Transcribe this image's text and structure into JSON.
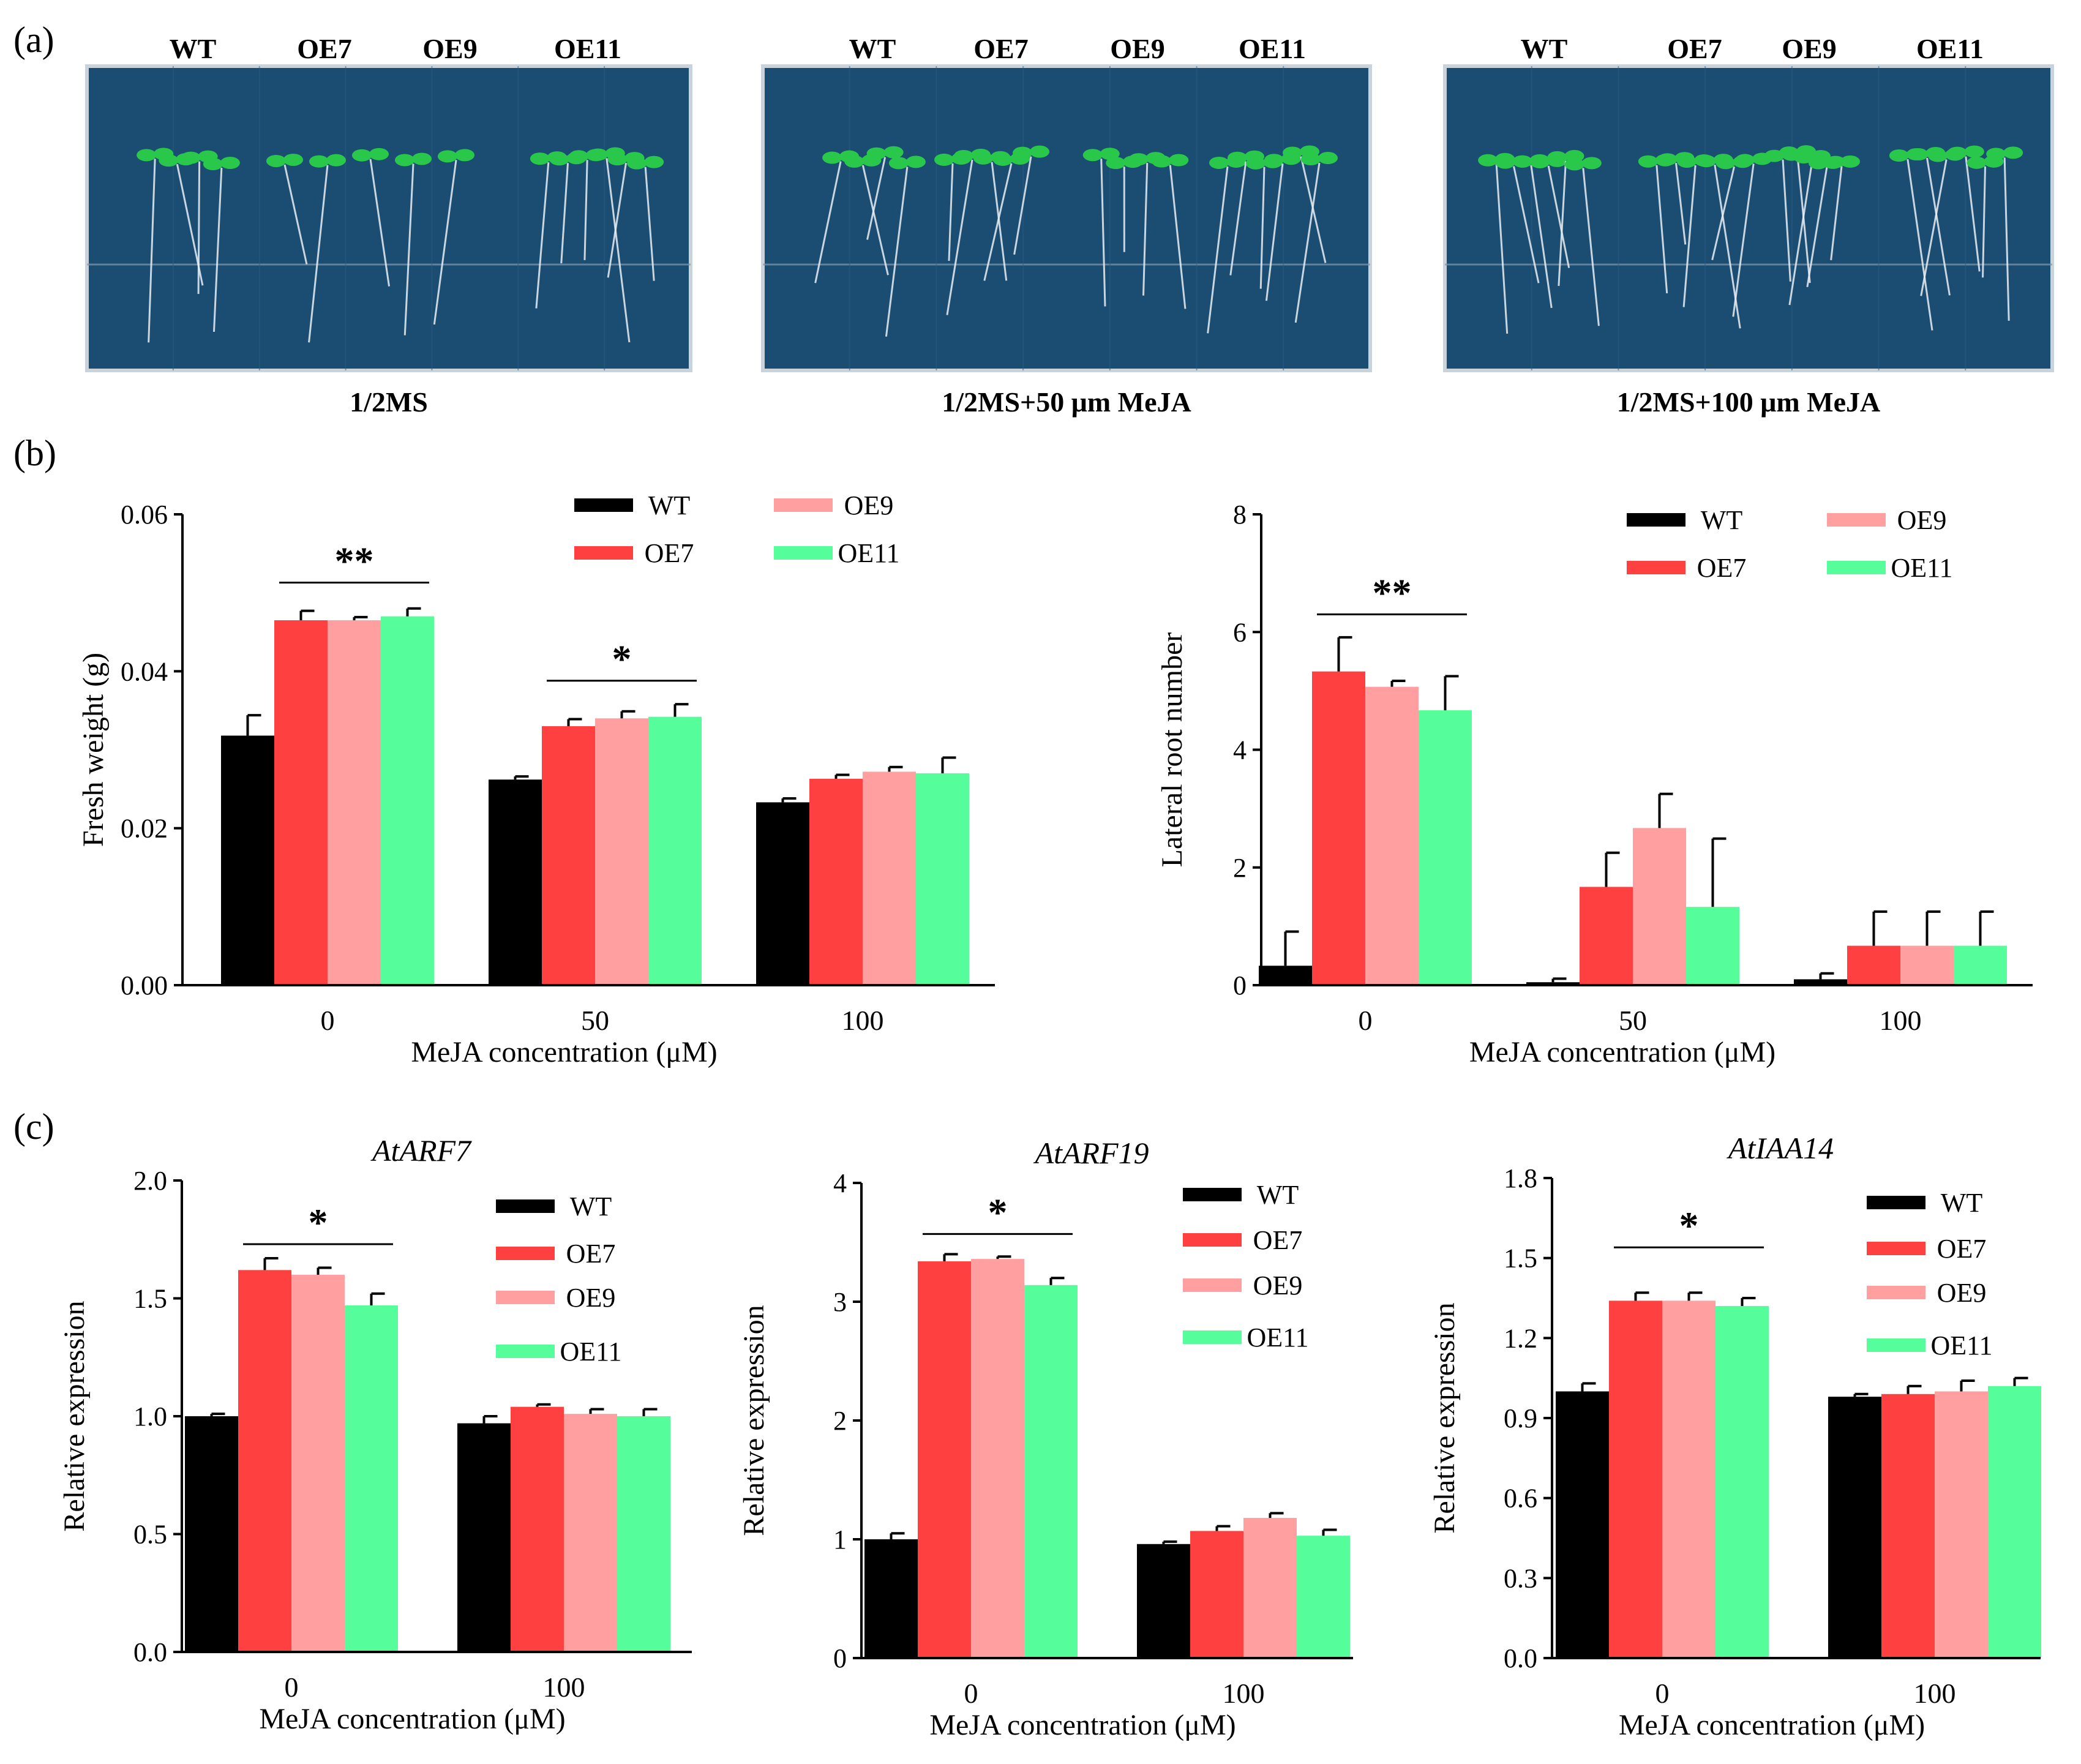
{
  "figure": {
    "panel_labels": [
      "(a)",
      "(b)",
      "(c)"
    ],
    "colors": {
      "WT": "#000000",
      "OE7": "#ff4040",
      "OE9": "#ff9f9f",
      "OE11": "#55fe9a",
      "plate_bg": "#1b4c72",
      "plate_border": "#c8d3dc",
      "seedling": "#29c84a",
      "root": "#e8eef3"
    }
  },
  "photos": [
    {
      "caption": "1/2MS",
      "genotypes": [
        "WT",
        "OE7",
        "OE9",
        "OE11"
      ]
    },
    {
      "caption": "1/2MS+50 μm MeJA",
      "genotypes": [
        "WT",
        "OE7",
        "OE9",
        "OE11"
      ]
    },
    {
      "caption": "1/2MS+100 μm MeJA",
      "genotypes": [
        "WT",
        "OE7",
        "OE9",
        "OE11"
      ]
    }
  ],
  "chart_data": [
    {
      "type": "bar",
      "panel": "b",
      "title": "",
      "categories": [
        "0",
        "50",
        "100"
      ],
      "xlabel": "MeJA concentration (μM)",
      "ylabel": "Fresh weight (g)",
      "ylim": [
        0,
        0.06
      ],
      "yticks": [
        "0.00",
        "0.02",
        "0.04",
        "0.06"
      ],
      "series": [
        {
          "name": "WT",
          "values": [
            0.0318,
            0.0262,
            0.0233
          ],
          "errors": [
            0.0026,
            0.0004,
            0.0005
          ]
        },
        {
          "name": "OE7",
          "values": [
            0.0465,
            0.033,
            0.0263
          ],
          "errors": [
            0.0012,
            0.0009,
            0.0005
          ]
        },
        {
          "name": "OE9",
          "values": [
            0.0465,
            0.034,
            0.0272
          ],
          "errors": [
            0.0004,
            0.0009,
            0.0006
          ]
        },
        {
          "name": "OE11",
          "values": [
            0.047,
            0.0342,
            0.027
          ],
          "errors": [
            0.001,
            0.0016,
            0.002
          ]
        }
      ],
      "legend": {
        "position": "top-right",
        "entries": [
          "WT",
          "OE9",
          "OE7",
          "OE11"
        ]
      },
      "annotations": [
        {
          "text": "**",
          "category": 0,
          "from_series": 1,
          "to_series": 3,
          "level": 0.0513
        },
        {
          "text": "*",
          "category": 1,
          "from_series": 1,
          "to_series": 3,
          "level": 0.0388
        }
      ]
    },
    {
      "type": "bar",
      "panel": "b",
      "title": "",
      "categories": [
        "0",
        "50",
        "100"
      ],
      "xlabel": "MeJA concentration (μM)",
      "ylabel": "Lateral root number",
      "ylim": [
        0,
        8
      ],
      "yticks": [
        "0",
        "2",
        "4",
        "6",
        "8"
      ],
      "series": [
        {
          "name": "WT",
          "values": [
            0.33,
            0.05,
            0.1
          ],
          "errors": [
            0.58,
            0.06,
            0.1
          ]
        },
        {
          "name": "OE7",
          "values": [
            5.33,
            1.67,
            0.67
          ],
          "errors": [
            0.58,
            0.58,
            0.58
          ]
        },
        {
          "name": "OE9",
          "values": [
            5.07,
            2.67,
            0.67
          ],
          "errors": [
            0.1,
            0.58,
            0.58
          ]
        },
        {
          "name": "OE11",
          "values": [
            4.67,
            1.33,
            0.67
          ],
          "errors": [
            0.58,
            1.16,
            0.58
          ]
        }
      ],
      "legend": {
        "position": "top-right",
        "entries": [
          "WT",
          "OE9",
          "OE7",
          "OE11"
        ]
      },
      "annotations": [
        {
          "text": "**",
          "category": 0,
          "from_series": 1,
          "to_series": 3,
          "level": 6.3
        }
      ]
    },
    {
      "type": "bar",
      "panel": "c",
      "title": "AtARF7",
      "categories": [
        "0",
        "100"
      ],
      "xlabel": "MeJA concentration (μM)",
      "ylabel": "Relative expression",
      "ylim": [
        0,
        2.0
      ],
      "yticks": [
        "0.0",
        "0.5",
        "1.0",
        "1.5",
        "2.0"
      ],
      "series": [
        {
          "name": "WT",
          "values": [
            1.0,
            0.97
          ],
          "errors": [
            0.01,
            0.03
          ]
        },
        {
          "name": "OE7",
          "values": [
            1.62,
            1.04
          ],
          "errors": [
            0.05,
            0.01
          ]
        },
        {
          "name": "OE9",
          "values": [
            1.6,
            1.01
          ],
          "errors": [
            0.03,
            0.02
          ]
        },
        {
          "name": "OE11",
          "values": [
            1.47,
            1.0
          ],
          "errors": [
            0.05,
            0.03
          ]
        }
      ],
      "legend": {
        "position": "top-right",
        "entries": [
          "WT",
          "OE7",
          "OE9",
          "OE11"
        ]
      },
      "annotations": [
        {
          "text": "*",
          "category": 0,
          "from_series": 1,
          "to_series": 3,
          "level": 1.73
        }
      ]
    },
    {
      "type": "bar",
      "panel": "c",
      "title": "AtARF19",
      "categories": [
        "0",
        "100"
      ],
      "xlabel": "MeJA concentration (μM)",
      "ylabel": "Relative expression",
      "ylim": [
        0,
        4
      ],
      "yticks": [
        "0",
        "1",
        "2",
        "3",
        "4"
      ],
      "series": [
        {
          "name": "WT",
          "values": [
            1.0,
            0.96
          ],
          "errors": [
            0.05,
            0.02
          ]
        },
        {
          "name": "OE7",
          "values": [
            3.34,
            1.07
          ],
          "errors": [
            0.06,
            0.04
          ]
        },
        {
          "name": "OE9",
          "values": [
            3.36,
            1.18
          ],
          "errors": [
            0.02,
            0.04
          ]
        },
        {
          "name": "OE11",
          "values": [
            3.14,
            1.03
          ],
          "errors": [
            0.06,
            0.05
          ]
        }
      ],
      "legend": {
        "position": "top-right",
        "entries": [
          "WT",
          "OE7",
          "OE9",
          "OE11"
        ]
      },
      "annotations": [
        {
          "text": "*",
          "category": 0,
          "from_series": 1,
          "to_series": 3,
          "level": 3.57
        }
      ]
    },
    {
      "type": "bar",
      "panel": "c",
      "title": "AtIAA14",
      "categories": [
        "0",
        "100"
      ],
      "xlabel": "MeJA concentration (μM)",
      "ylabel": "Relative expression",
      "ylim": [
        0,
        1.8
      ],
      "yticks": [
        "0.0",
        "0.3",
        "0.6",
        "0.9",
        "1.2",
        "1.5",
        "1.8"
      ],
      "series": [
        {
          "name": "WT",
          "values": [
            1.0,
            0.98
          ],
          "errors": [
            0.03,
            0.01
          ]
        },
        {
          "name": "OE7",
          "values": [
            1.34,
            0.99
          ],
          "errors": [
            0.03,
            0.03
          ]
        },
        {
          "name": "OE9",
          "values": [
            1.34,
            1.0
          ],
          "errors": [
            0.03,
            0.04
          ]
        },
        {
          "name": "OE11",
          "values": [
            1.32,
            1.02
          ],
          "errors": [
            0.03,
            0.03
          ]
        }
      ],
      "legend": {
        "position": "top-right",
        "entries": [
          "WT",
          "OE7",
          "OE9",
          "OE11"
        ]
      },
      "annotations": [
        {
          "text": "*",
          "category": 0,
          "from_series": 1,
          "to_series": 3,
          "level": 1.54
        }
      ]
    }
  ]
}
